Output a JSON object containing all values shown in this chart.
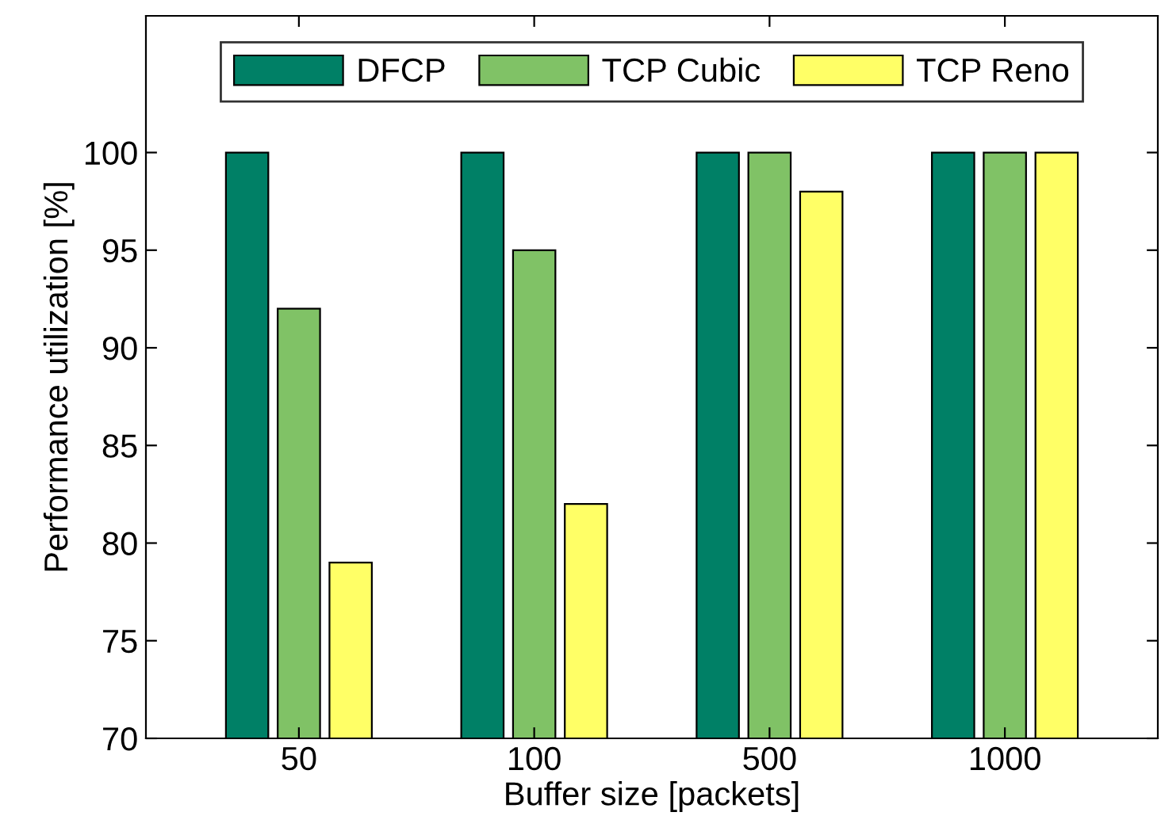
{
  "chart_data": {
    "type": "bar",
    "xlabel": "Buffer size [packets]",
    "ylabel": "Performance utilization [%]",
    "categories": [
      "50",
      "100",
      "500",
      "1000"
    ],
    "series": [
      {
        "name": "DFCP",
        "color": "#008066",
        "values": [
          100,
          100,
          100,
          100
        ]
      },
      {
        "name": "TCP Cubic",
        "color": "#80c266",
        "values": [
          92,
          95,
          100,
          100
        ]
      },
      {
        "name": "TCP Reno",
        "color": "#ffff66",
        "values": [
          79,
          82,
          98,
          100
        ]
      }
    ],
    "ylim": [
      70,
      107
    ],
    "yticks": [
      70,
      75,
      80,
      85,
      90,
      95,
      100
    ],
    "grid": false,
    "legend": "top"
  }
}
